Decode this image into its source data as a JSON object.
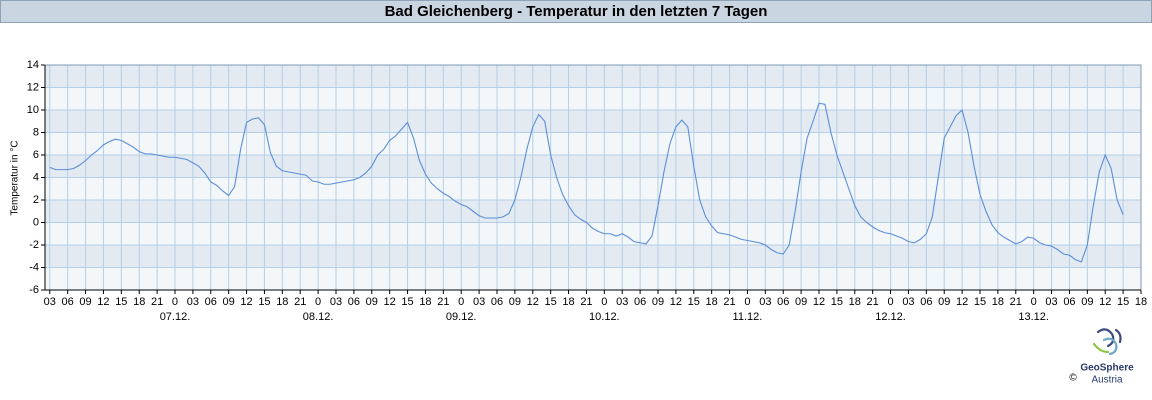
{
  "chart_data": {
    "type": "line",
    "title": "Bad Gleichenberg - Temperatur in den letzten 7 Tagen",
    "y_label": "Temperatur in °C",
    "logo": {
      "name": "GeoSphere",
      "sub": "Austria",
      "copyright": "©"
    },
    "ylim": [
      -6,
      14
    ],
    "yticks": [
      -6,
      -4,
      -2,
      0,
      2,
      4,
      6,
      8,
      10,
      12,
      14
    ],
    "xlim": [
      "06.12. 02:12",
      "13.12. 18:00"
    ],
    "grid": true,
    "bands": true,
    "xticks": [
      {
        "value": "06.12. 03:00",
        "label": "03"
      },
      {
        "value": "06.12. 06:00",
        "label": "06"
      },
      {
        "value": "06.12. 09:00",
        "label": "09"
      },
      {
        "value": "06.12. 12:00",
        "label": "12"
      },
      {
        "value": "06.12. 15:00",
        "label": "15"
      },
      {
        "value": "06.12. 18:00",
        "label": "18"
      },
      {
        "value": "06.12. 21:00",
        "label": "21"
      },
      {
        "value": "07.12. 00:00",
        "label": "0"
      },
      {
        "value": "07.12. 03:00",
        "label": "03"
      },
      {
        "value": "07.12. 06:00",
        "label": "06"
      },
      {
        "value": "07.12. 09:00",
        "label": "09"
      },
      {
        "value": "07.12. 12:00",
        "label": "12"
      },
      {
        "value": "07.12. 15:00",
        "label": "15"
      },
      {
        "value": "07.12. 18:00",
        "label": "18"
      },
      {
        "value": "07.12. 21:00",
        "label": "21"
      },
      {
        "value": "08.12. 00:00",
        "label": "0"
      },
      {
        "value": "08.12. 03:00",
        "label": "03"
      },
      {
        "value": "08.12. 06:00",
        "label": "06"
      },
      {
        "value": "08.12. 09:00",
        "label": "09"
      },
      {
        "value": "08.12. 12:00",
        "label": "12"
      },
      {
        "value": "08.12. 15:00",
        "label": "15"
      },
      {
        "value": "08.12. 18:00",
        "label": "18"
      },
      {
        "value": "08.12. 21:00",
        "label": "21"
      },
      {
        "value": "09.12. 00:00",
        "label": "0"
      },
      {
        "value": "09.12. 03:00",
        "label": "03"
      },
      {
        "value": "09.12. 06:00",
        "label": "06"
      },
      {
        "value": "09.12. 09:00",
        "label": "09"
      },
      {
        "value": "09.12. 12:00",
        "label": "12"
      },
      {
        "value": "09.12. 15:00",
        "label": "15"
      },
      {
        "value": "09.12. 18:00",
        "label": "18"
      },
      {
        "value": "09.12. 21:00",
        "label": "21"
      },
      {
        "value": "10.12. 00:00",
        "label": "0"
      },
      {
        "value": "10.12. 03:00",
        "label": "03"
      },
      {
        "value": "10.12. 06:00",
        "label": "06"
      },
      {
        "value": "10.12. 09:00",
        "label": "09"
      },
      {
        "value": "10.12. 12:00",
        "label": "12"
      },
      {
        "value": "10.12. 15:00",
        "label": "15"
      },
      {
        "value": "10.12. 18:00",
        "label": "18"
      },
      {
        "value": "10.12. 21:00",
        "label": "21"
      },
      {
        "value": "11.12. 00:00",
        "label": "0"
      },
      {
        "value": "11.12. 03:00",
        "label": "03"
      },
      {
        "value": "11.12. 06:00",
        "label": "06"
      },
      {
        "value": "11.12. 09:00",
        "label": "09"
      },
      {
        "value": "11.12. 12:00",
        "label": "12"
      },
      {
        "value": "11.12. 15:00",
        "label": "15"
      },
      {
        "value": "11.12. 18:00",
        "label": "18"
      },
      {
        "value": "11.12. 21:00",
        "label": "21"
      },
      {
        "value": "12.12. 00:00",
        "label": "0"
      },
      {
        "value": "12.12. 03:00",
        "label": "03"
      },
      {
        "value": "12.12. 06:00",
        "label": "06"
      },
      {
        "value": "12.12. 09:00",
        "label": "09"
      },
      {
        "value": "12.12. 12:00",
        "label": "12"
      },
      {
        "value": "12.12. 15:00",
        "label": "15"
      },
      {
        "value": "12.12. 18:00",
        "label": "18"
      },
      {
        "value": "12.12. 21:00",
        "label": "21"
      },
      {
        "value": "13.12. 00:00",
        "label": "0"
      },
      {
        "value": "13.12. 03:00",
        "label": "03"
      },
      {
        "value": "13.12. 06:00",
        "label": "06"
      },
      {
        "value": "13.12. 09:00",
        "label": "09"
      },
      {
        "value": "13.12. 12:00",
        "label": "12"
      },
      {
        "value": "13.12. 15:00",
        "label": "15"
      },
      {
        "value": "13.12. 18:00",
        "label": "18"
      }
    ],
    "date_labels": [
      {
        "value": "07.12. 00:00",
        "label": "07.12."
      },
      {
        "value": "08.12. 00:00",
        "label": "08.12."
      },
      {
        "value": "09.12. 00:00",
        "label": "09.12."
      },
      {
        "value": "10.12. 00:00",
        "label": "10.12."
      },
      {
        "value": "11.12. 00:00",
        "label": "11.12."
      },
      {
        "value": "12.12. 00:00",
        "label": "12.12."
      },
      {
        "value": "13.12. 00:00",
        "label": "13.12."
      }
    ],
    "x": [
      "06.12. 03:00",
      "06.12. 04:00",
      "06.12. 05:00",
      "06.12. 06:00",
      "06.12. 07:00",
      "06.12. 08:00",
      "06.12. 09:00",
      "06.12. 10:00",
      "06.12. 11:00",
      "06.12. 12:00",
      "06.12. 13:00",
      "06.12. 14:00",
      "06.12. 15:00",
      "06.12. 16:00",
      "06.12. 17:00",
      "06.12. 18:00",
      "06.12. 19:00",
      "06.12. 20:00",
      "06.12. 21:00",
      "06.12. 22:00",
      "06.12. 23:00",
      "07.12. 00:00",
      "07.12. 01:00",
      "07.12. 02:00",
      "07.12. 03:00",
      "07.12. 04:00",
      "07.12. 05:00",
      "07.12. 06:00",
      "07.12. 07:00",
      "07.12. 08:00",
      "07.12. 09:00",
      "07.12. 10:00",
      "07.12. 11:00",
      "07.12. 12:00",
      "07.12. 13:00",
      "07.12. 14:00",
      "07.12. 15:00",
      "07.12. 16:00",
      "07.12. 17:00",
      "07.12. 18:00",
      "07.12. 19:00",
      "07.12. 20:00",
      "07.12. 21:00",
      "07.12. 22:00",
      "07.12. 23:00",
      "08.12. 00:00",
      "08.12. 01:00",
      "08.12. 02:00",
      "08.12. 03:00",
      "08.12. 04:00",
      "08.12. 05:00",
      "08.12. 06:00",
      "08.12. 07:00",
      "08.12. 08:00",
      "08.12. 09:00",
      "08.12. 10:00",
      "08.12. 11:00",
      "08.12. 12:00",
      "08.12. 13:00",
      "08.12. 14:00",
      "08.12. 15:00",
      "08.12. 16:00",
      "08.12. 17:00",
      "08.12. 18:00",
      "08.12. 19:00",
      "08.12. 20:00",
      "08.12. 21:00",
      "08.12. 22:00",
      "08.12. 23:00",
      "09.12. 00:00",
      "09.12. 01:00",
      "09.12. 02:00",
      "09.12. 03:00",
      "09.12. 04:00",
      "09.12. 05:00",
      "09.12. 06:00",
      "09.12. 07:00",
      "09.12. 08:00",
      "09.12. 09:00",
      "09.12. 10:00",
      "09.12. 11:00",
      "09.12. 12:00",
      "09.12. 13:00",
      "09.12. 14:00",
      "09.12. 15:00",
      "09.12. 16:00",
      "09.12. 17:00",
      "09.12. 18:00",
      "09.12. 19:00",
      "09.12. 20:00",
      "09.12. 21:00",
      "09.12. 22:00",
      "09.12. 23:00",
      "10.12. 00:00",
      "10.12. 01:00",
      "10.12. 02:00",
      "10.12. 03:00",
      "10.12. 04:00",
      "10.12. 05:00",
      "10.12. 06:00",
      "10.12. 07:00",
      "10.12. 08:00",
      "10.12. 09:00",
      "10.12. 10:00",
      "10.12. 11:00",
      "10.12. 12:00",
      "10.12. 13:00",
      "10.12. 14:00",
      "10.12. 15:00",
      "10.12. 16:00",
      "10.12. 17:00",
      "10.12. 18:00",
      "10.12. 19:00",
      "10.12. 20:00",
      "10.12. 21:00",
      "10.12. 22:00",
      "10.12. 23:00",
      "11.12. 00:00",
      "11.12. 01:00",
      "11.12. 02:00",
      "11.12. 03:00",
      "11.12. 04:00",
      "11.12. 05:00",
      "11.12. 06:00",
      "11.12. 07:00",
      "11.12. 08:00",
      "11.12. 09:00",
      "11.12. 10:00",
      "11.12. 11:00",
      "11.12. 12:00",
      "11.12. 13:00",
      "11.12. 14:00",
      "11.12. 15:00",
      "11.12. 16:00",
      "11.12. 17:00",
      "11.12. 18:00",
      "11.12. 19:00",
      "11.12. 20:00",
      "11.12. 21:00",
      "11.12. 22:00",
      "11.12. 23:00",
      "12.12. 00:00",
      "12.12. 01:00",
      "12.12. 02:00",
      "12.12. 03:00",
      "12.12. 04:00",
      "12.12. 05:00",
      "12.12. 06:00",
      "12.12. 07:00",
      "12.12. 08:00",
      "12.12. 09:00",
      "12.12. 10:00",
      "12.12. 11:00",
      "12.12. 12:00",
      "12.12. 13:00",
      "12.12. 14:00",
      "12.12. 15:00",
      "12.12. 16:00",
      "12.12. 17:00",
      "12.12. 18:00",
      "12.12. 19:00",
      "12.12. 20:00",
      "12.12. 21:00",
      "12.12. 22:00",
      "12.12. 23:00",
      "13.12. 00:00",
      "13.12. 01:00",
      "13.12. 02:00",
      "13.12. 03:00",
      "13.12. 04:00",
      "13.12. 05:00",
      "13.12. 06:00",
      "13.12. 07:00",
      "13.12. 08:00",
      "13.12. 09:00",
      "13.12. 10:00",
      "13.12. 11:00",
      "13.12. 12:00",
      "13.12. 13:00",
      "13.12. 14:00",
      "13.12. 15:00"
    ],
    "series": [
      {
        "name": "Temperatur",
        "color": "#5b8fd8",
        "values": [
          4.9,
          4.7,
          4.7,
          4.7,
          4.8,
          5.1,
          5.5,
          6.0,
          6.4,
          6.9,
          7.2,
          7.4,
          7.3,
          7.0,
          6.7,
          6.3,
          6.1,
          6.1,
          6.0,
          5.9,
          5.8,
          5.8,
          5.7,
          5.6,
          5.3,
          5.0,
          4.4,
          3.6,
          3.3,
          2.8,
          2.4,
          3.2,
          6.5,
          8.9,
          9.2,
          9.3,
          8.7,
          6.2,
          5.0,
          4.6,
          4.5,
          4.4,
          4.3,
          4.2,
          3.7,
          3.6,
          3.4,
          3.4,
          3.5,
          3.6,
          3.7,
          3.8,
          4.0,
          4.4,
          5.0,
          6.0,
          6.5,
          7.3,
          7.7,
          8.3,
          8.9,
          7.5,
          5.5,
          4.3,
          3.5,
          3.0,
          2.6,
          2.3,
          1.9,
          1.6,
          1.4,
          1.0,
          0.6,
          0.4,
          0.4,
          0.4,
          0.5,
          0.8,
          2.0,
          4.0,
          6.5,
          8.5,
          9.6,
          9.0,
          6.0,
          4.0,
          2.5,
          1.5,
          0.7,
          0.3,
          0.0,
          -0.5,
          -0.8,
          -1.0,
          -1.0,
          -1.2,
          -1.0,
          -1.3,
          -1.7,
          -1.8,
          -1.9,
          -1.2,
          1.5,
          4.5,
          7.0,
          8.5,
          9.1,
          8.5,
          5.0,
          2.0,
          0.5,
          -0.3,
          -0.9,
          -1.0,
          -1.1,
          -1.3,
          -1.5,
          -1.6,
          -1.7,
          -1.8,
          -2.0,
          -2.4,
          -2.7,
          -2.8,
          -2.0,
          1.0,
          4.5,
          7.5,
          9.0,
          10.6,
          10.5,
          8.0,
          6.0,
          4.5,
          3.0,
          1.5,
          0.5,
          0.0,
          -0.4,
          -0.7,
          -0.9,
          -1.0,
          -1.2,
          -1.4,
          -1.7,
          -1.8,
          -1.5,
          -1.0,
          0.5,
          4.0,
          7.5,
          8.5,
          9.5,
          10.0,
          8.0,
          5.0,
          2.5,
          1.0,
          -0.2,
          -0.9,
          -1.3,
          -1.6,
          -1.9,
          -1.7,
          -1.3,
          -1.4,
          -1.8,
          -2.0,
          -2.1,
          -2.4,
          -2.8,
          -2.9,
          -3.3,
          -3.5,
          -2.0,
          1.5,
          4.5,
          6.0,
          4.8,
          2.0,
          0.7
        ]
      }
    ]
  }
}
